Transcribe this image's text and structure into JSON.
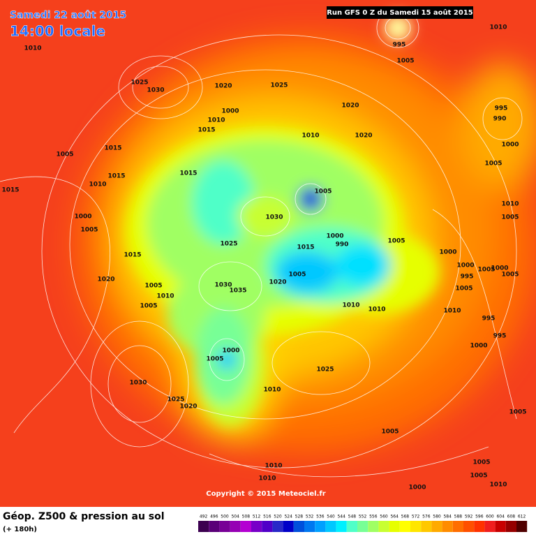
{
  "header": {
    "date": "Samedi 22 août 2015",
    "time": "14:00 locale",
    "run": "Run GFS 0 Z du Samedi 15 août 2015"
  },
  "isobars": {
    "labels": [
      1010,
      1025,
      1030,
      1020,
      1025,
      1000,
      1010,
      1015,
      1010,
      1020,
      1020,
      995,
      1005,
      1010,
      995,
      990,
      1000,
      1005,
      1005,
      1015,
      1015,
      1015,
      1010,
      1015,
      1005,
      1030,
      1010,
      1005,
      1000,
      1005,
      1025,
      1000,
      990,
      1015,
      1005,
      1000,
      1015,
      1000,
      995,
      1005,
      1000,
      1005,
      1005,
      1020,
      1005,
      1030,
      1035,
      1020,
      1005,
      1010,
      1005,
      1010,
      1010,
      1010,
      995,
      995,
      1000,
      1000,
      1005,
      1025,
      1030,
      1010,
      1025,
      1020,
      1005,
      1005,
      1005,
      1010,
      1010,
      1005,
      1000,
      1010
    ]
  },
  "copyright": "Copyright © 2015 Meteociel.fr",
  "footer": {
    "title": "Géop. Z500 & pression au sol",
    "lead": "(+ 180h)"
  },
  "scale": {
    "values": [
      492,
      496,
      500,
      504,
      508,
      512,
      516,
      520,
      524,
      528,
      532,
      536,
      540,
      544,
      548,
      552,
      556,
      560,
      564,
      568,
      572,
      576,
      580,
      584,
      588,
      592,
      596,
      600,
      604,
      608,
      612
    ],
    "colors": [
      "#3c0050",
      "#5a0078",
      "#780096",
      "#9600b4",
      "#b400d2",
      "#7800c8",
      "#5000c8",
      "#2828c8",
      "#0000c8",
      "#0050dc",
      "#0078f0",
      "#00a0ff",
      "#00c8ff",
      "#00f0ff",
      "#50ffc8",
      "#78ff96",
      "#a0ff64",
      "#c8ff32",
      "#e6ff00",
      "#ffff00",
      "#ffe600",
      "#ffc800",
      "#ffaa00",
      "#ff8c00",
      "#ff6e00",
      "#ff5000",
      "#ff3200",
      "#f01e1e",
      "#c80000",
      "#960000",
      "#500000"
    ]
  }
}
